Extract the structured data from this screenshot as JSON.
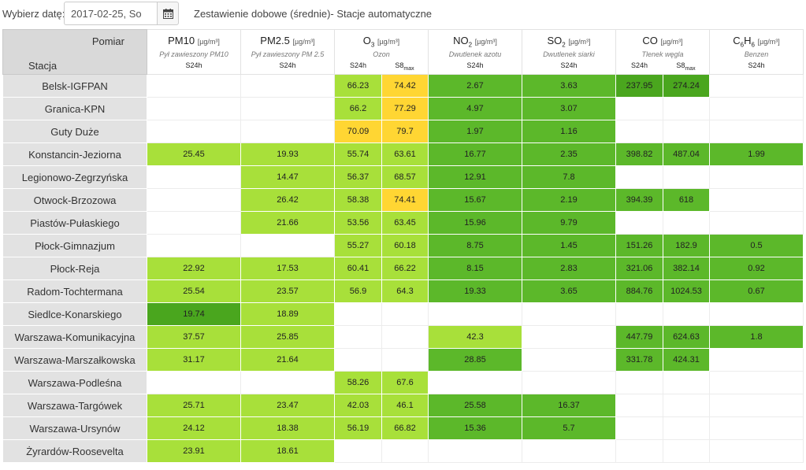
{
  "topbar": {
    "date_label": "Wybierz datę:",
    "date_value": "2017-02-25, So",
    "calendar_icon": "calendar-icon",
    "title": "Zestawienie dobowe (średnie)- Stacje automatyczne"
  },
  "header": {
    "pomiar": "Pomiar",
    "stacja": "Stacja",
    "params": [
      {
        "main": "PM10",
        "sub": "",
        "tail": "",
        "unit": "[µg/m³]",
        "desc": "Pył zawieszony PM10",
        "cols": [
          "S24h"
        ]
      },
      {
        "main": "PM2.5",
        "sub": "",
        "tail": "",
        "unit": "[µg/m³]",
        "desc": "Pył zawieszony PM 2.5",
        "cols": [
          "S24h"
        ]
      },
      {
        "main": "O",
        "sub": "3",
        "tail": "",
        "unit": "[µg/m³]",
        "desc": "Ozon",
        "cols": [
          "S24h",
          "S8max"
        ]
      },
      {
        "main": "NO",
        "sub": "2",
        "tail": "",
        "unit": "[µg/m³]",
        "desc": "Dwutlenek azotu",
        "cols": [
          "S24h"
        ]
      },
      {
        "main": "SO",
        "sub": "2",
        "tail": "",
        "unit": "[µg/m³]",
        "desc": "Dwutlenek siarki",
        "cols": [
          "S24h"
        ]
      },
      {
        "main": "CO",
        "sub": "",
        "tail": "",
        "unit": "[µg/m³]",
        "desc": "Tlenek węgla",
        "cols": [
          "S24h",
          "S8max"
        ]
      },
      {
        "main": "C",
        "sub": "6",
        "tail": "H6",
        "unit": "[µg/m³]",
        "desc": "Benzen",
        "cols": [
          "S24h"
        ]
      }
    ]
  },
  "legend_colors": {
    "0": "#ffffff",
    "1": "#a8e03a",
    "2": "#5cb82a",
    "3": "#4aa61e",
    "4": "#ffd633"
  },
  "rows": [
    {
      "station": "Belsk-IGFPAN",
      "values": [
        "",
        "",
        "66.23",
        "74.42",
        "2.67",
        "3.63",
        "237.95",
        "274.24",
        ""
      ],
      "levels": [
        0,
        0,
        1,
        4,
        2,
        2,
        3,
        3,
        0
      ]
    },
    {
      "station": "Granica-KPN",
      "values": [
        "",
        "",
        "66.2",
        "77.29",
        "4.97",
        "3.07",
        "",
        "",
        ""
      ],
      "levels": [
        0,
        0,
        1,
        4,
        2,
        2,
        0,
        0,
        0
      ]
    },
    {
      "station": "Guty Duże",
      "values": [
        "",
        "",
        "70.09",
        "79.7",
        "1.97",
        "1.16",
        "",
        "",
        ""
      ],
      "levels": [
        0,
        0,
        4,
        4,
        2,
        2,
        0,
        0,
        0
      ]
    },
    {
      "station": "Konstancin-Jeziorna",
      "values": [
        "25.45",
        "19.93",
        "55.74",
        "63.61",
        "16.77",
        "2.35",
        "398.82",
        "487.04",
        "1.99"
      ],
      "levels": [
        1,
        1,
        1,
        1,
        2,
        2,
        2,
        2,
        2
      ]
    },
    {
      "station": "Legionowo-Zegrzyńska",
      "values": [
        "",
        "14.47",
        "56.37",
        "68.57",
        "12.91",
        "7.8",
        "",
        "",
        ""
      ],
      "levels": [
        0,
        1,
        1,
        1,
        2,
        2,
        0,
        0,
        0
      ]
    },
    {
      "station": "Otwock-Brzozowa",
      "values": [
        "",
        "26.42",
        "58.38",
        "74.41",
        "15.67",
        "2.19",
        "394.39",
        "618",
        ""
      ],
      "levels": [
        0,
        1,
        1,
        4,
        2,
        2,
        2,
        2,
        0
      ]
    },
    {
      "station": "Piastów-Pułaskiego",
      "values": [
        "",
        "21.66",
        "53.56",
        "63.45",
        "15.96",
        "9.79",
        "",
        "",
        ""
      ],
      "levels": [
        0,
        1,
        1,
        1,
        2,
        2,
        0,
        0,
        0
      ]
    },
    {
      "station": "Płock-Gimnazjum",
      "values": [
        "",
        "",
        "55.27",
        "60.18",
        "8.75",
        "1.45",
        "151.26",
        "182.9",
        "0.5"
      ],
      "levels": [
        0,
        0,
        1,
        1,
        2,
        2,
        2,
        2,
        2
      ]
    },
    {
      "station": "Płock-Reja",
      "values": [
        "22.92",
        "17.53",
        "60.41",
        "66.22",
        "8.15",
        "2.83",
        "321.06",
        "382.14",
        "0.92"
      ],
      "levels": [
        1,
        1,
        1,
        1,
        2,
        2,
        2,
        2,
        2
      ]
    },
    {
      "station": "Radom-Tochtermana",
      "values": [
        "25.54",
        "23.57",
        "56.9",
        "64.3",
        "19.33",
        "3.65",
        "884.76",
        "1024.53",
        "0.67"
      ],
      "levels": [
        1,
        1,
        1,
        1,
        2,
        2,
        2,
        2,
        2
      ]
    },
    {
      "station": "Siedlce-Konarskiego",
      "values": [
        "19.74",
        "18.89",
        "",
        "",
        "",
        "",
        "",
        "",
        ""
      ],
      "levels": [
        3,
        1,
        0,
        0,
        0,
        0,
        0,
        0,
        0
      ]
    },
    {
      "station": "Warszawa-Komunikacyjna",
      "values": [
        "37.57",
        "25.85",
        "",
        "",
        "42.3",
        "",
        "447.79",
        "624.63",
        "1.8"
      ],
      "levels": [
        1,
        1,
        0,
        0,
        1,
        0,
        2,
        2,
        2
      ]
    },
    {
      "station": "Warszawa-Marszałkowska",
      "values": [
        "31.17",
        "21.64",
        "",
        "",
        "28.85",
        "",
        "331.78",
        "424.31",
        ""
      ],
      "levels": [
        1,
        1,
        0,
        0,
        2,
        0,
        2,
        2,
        0
      ]
    },
    {
      "station": "Warszawa-Podleśna",
      "values": [
        "",
        "",
        "58.26",
        "67.6",
        "",
        "",
        "",
        "",
        ""
      ],
      "levels": [
        0,
        0,
        1,
        1,
        0,
        0,
        0,
        0,
        0
      ]
    },
    {
      "station": "Warszawa-Targówek",
      "values": [
        "25.71",
        "23.47",
        "42.03",
        "46.1",
        "25.58",
        "16.37",
        "",
        "",
        ""
      ],
      "levels": [
        1,
        1,
        1,
        1,
        2,
        2,
        0,
        0,
        0
      ]
    },
    {
      "station": "Warszawa-Ursynów",
      "values": [
        "24.12",
        "18.38",
        "56.19",
        "66.82",
        "15.36",
        "5.7",
        "",
        "",
        ""
      ],
      "levels": [
        1,
        1,
        1,
        1,
        2,
        2,
        0,
        0,
        0
      ]
    },
    {
      "station": "Żyrardów-Roosevelta",
      "values": [
        "23.91",
        "18.61",
        "",
        "",
        "",
        "",
        "",
        "",
        ""
      ],
      "levels": [
        1,
        1,
        0,
        0,
        0,
        0,
        0,
        0,
        0
      ]
    }
  ]
}
